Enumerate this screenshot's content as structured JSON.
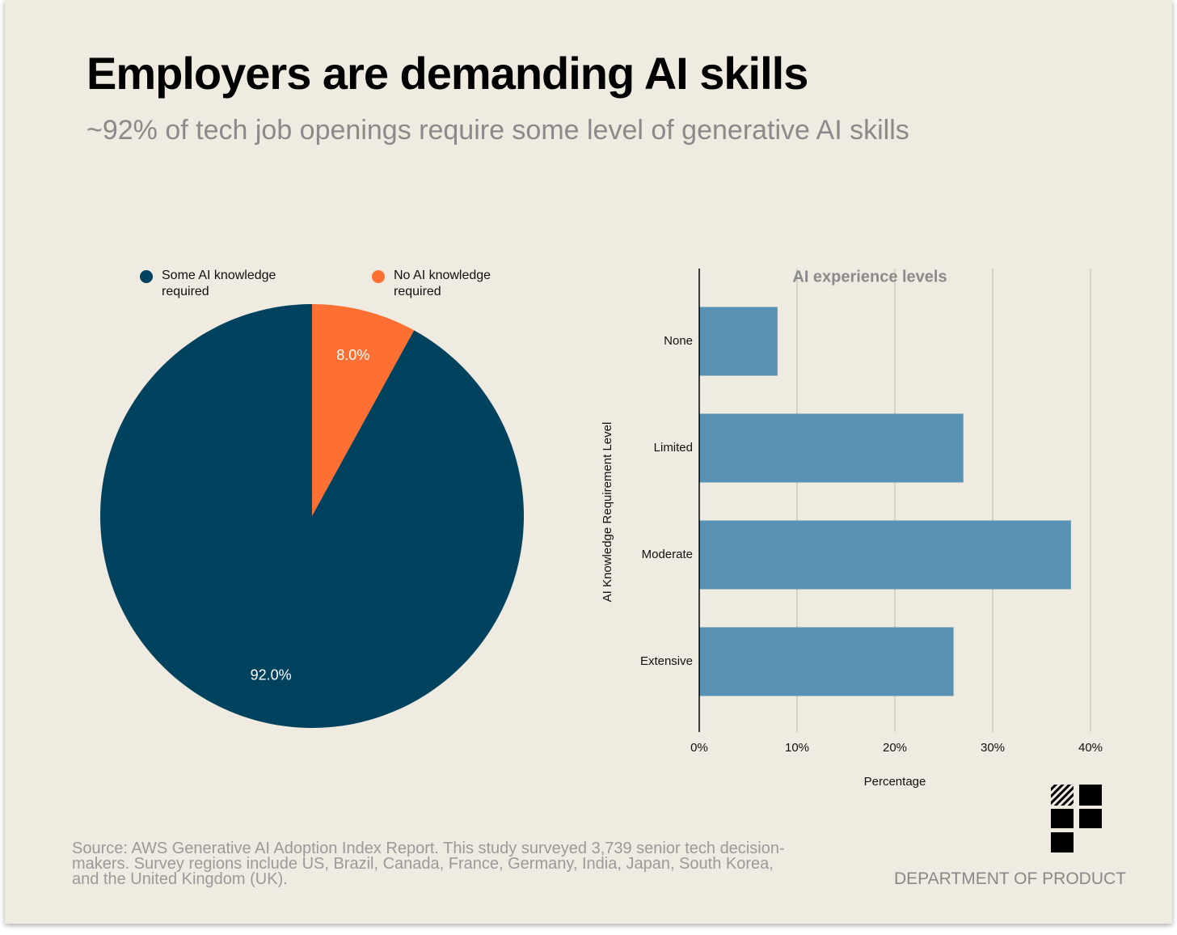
{
  "title": "Employers are demanding AI skills",
  "subtitle": "~92% of tech job openings require some level of generative AI skills",
  "source": "Source: AWS Generative AI Adoption Index Report. This study surveyed 3,739 senior tech decision-makers. Survey regions include US, Brazil, Canada, France, Germany, India, Japan, South Korea, and the United Kingdom (UK).",
  "brand": "DEPARTMENT OF PRODUCT",
  "chart_data": [
    {
      "type": "pie",
      "categories": [
        "Some AI knowledge required",
        "No AI knowledge required"
      ],
      "values": [
        92,
        8
      ],
      "value_labels": [
        "92.0%",
        "8.0%"
      ],
      "colors": [
        "#01425f",
        "#fd6f32"
      ],
      "legend": "top"
    },
    {
      "type": "barh",
      "title": "AI experience levels",
      "categories": [
        "None",
        "Limited",
        "Moderate",
        "Extensive"
      ],
      "values": [
        8,
        27,
        38,
        26
      ],
      "color": "#5891b1",
      "xlim": [
        0,
        40
      ],
      "xticks": [
        {
          "value": 0,
          "label": "0%"
        },
        {
          "value": 10,
          "label": "10%"
        },
        {
          "value": 20,
          "label": "20%"
        },
        {
          "value": 30,
          "label": "30%"
        },
        {
          "value": 40,
          "label": "40%"
        }
      ],
      "x_label": "Percentage",
      "y_label": "AI Knowledge Requirement Level",
      "grid": true
    }
  ]
}
